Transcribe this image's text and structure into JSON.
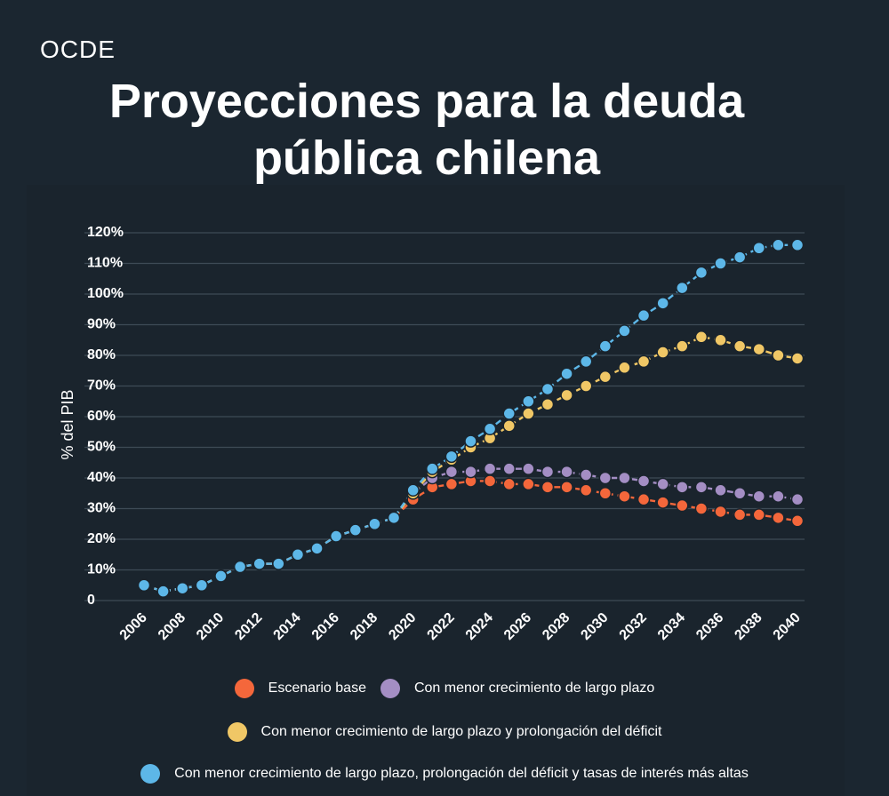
{
  "header": {
    "source": "OCDE",
    "title_line1": "Proyecciones para la deuda",
    "title_line2": "pública chilena"
  },
  "chart_data": {
    "type": "line",
    "title": "Proyecciones para la deuda pública chilena",
    "ylabel": "% del PIB",
    "xlabel": "",
    "ylim": [
      0,
      120
    ],
    "yticks": [
      "0",
      "10%",
      "20%",
      "30%",
      "40%",
      "50%",
      "60%",
      "70%",
      "80%",
      "90%",
      "100%",
      "110%",
      "120%"
    ],
    "xticks": [
      "2006",
      "2008",
      "2010",
      "2012",
      "2014",
      "2016",
      "2018",
      "2020",
      "2022",
      "2024",
      "2026",
      "2028",
      "2030",
      "2032",
      "2034",
      "2036",
      "2038",
      "2040"
    ],
    "x": [
      2006,
      2007,
      2008,
      2009,
      2010,
      2011,
      2012,
      2013,
      2014,
      2015,
      2016,
      2017,
      2018,
      2019,
      2020,
      2021,
      2022,
      2023,
      2024,
      2025,
      2026,
      2027,
      2028,
      2029,
      2030,
      2031,
      2032,
      2033,
      2034,
      2035,
      2036,
      2037,
      2038,
      2039,
      2040
    ],
    "series": [
      {
        "name": "Escenario base",
        "color": "#f4673b",
        "values": [
          5,
          3,
          4,
          5,
          8,
          11,
          12,
          12,
          15,
          17,
          21,
          23,
          25,
          27,
          33,
          37,
          38,
          39,
          39,
          38,
          38,
          37,
          37,
          36,
          35,
          34,
          33,
          32,
          31,
          30,
          29,
          28,
          28,
          27,
          26
        ]
      },
      {
        "name": "Con menor crecimiento de largo plazo",
        "color": "#a48ec4",
        "values": [
          5,
          3,
          4,
          5,
          8,
          11,
          12,
          12,
          15,
          17,
          21,
          23,
          25,
          27,
          35,
          40,
          42,
          42,
          43,
          43,
          43,
          42,
          42,
          41,
          40,
          40,
          39,
          38,
          37,
          37,
          36,
          35,
          34,
          34,
          33
        ]
      },
      {
        "name": "Con menor crecimiento de largo plazo y prolongación del déficit",
        "color": "#f0c766",
        "values": [
          5,
          3,
          4,
          5,
          8,
          11,
          12,
          12,
          15,
          17,
          21,
          23,
          25,
          27,
          35,
          42,
          46,
          50,
          53,
          57,
          61,
          64,
          67,
          70,
          73,
          76,
          78,
          81,
          83,
          86,
          85,
          83,
          82,
          80,
          79
        ]
      },
      {
        "name": "Con menor crecimiento de largo plazo, prolongación del déficit y tasas de interés más altas",
        "color": "#5db7e8",
        "values": [
          5,
          3,
          4,
          5,
          8,
          11,
          12,
          12,
          15,
          17,
          21,
          23,
          25,
          27,
          36,
          43,
          47,
          52,
          56,
          61,
          65,
          69,
          74,
          78,
          83,
          88,
          93,
          97,
          102,
          107,
          110,
          112,
          115,
          116,
          116
        ]
      }
    ],
    "legend": "bottom"
  }
}
